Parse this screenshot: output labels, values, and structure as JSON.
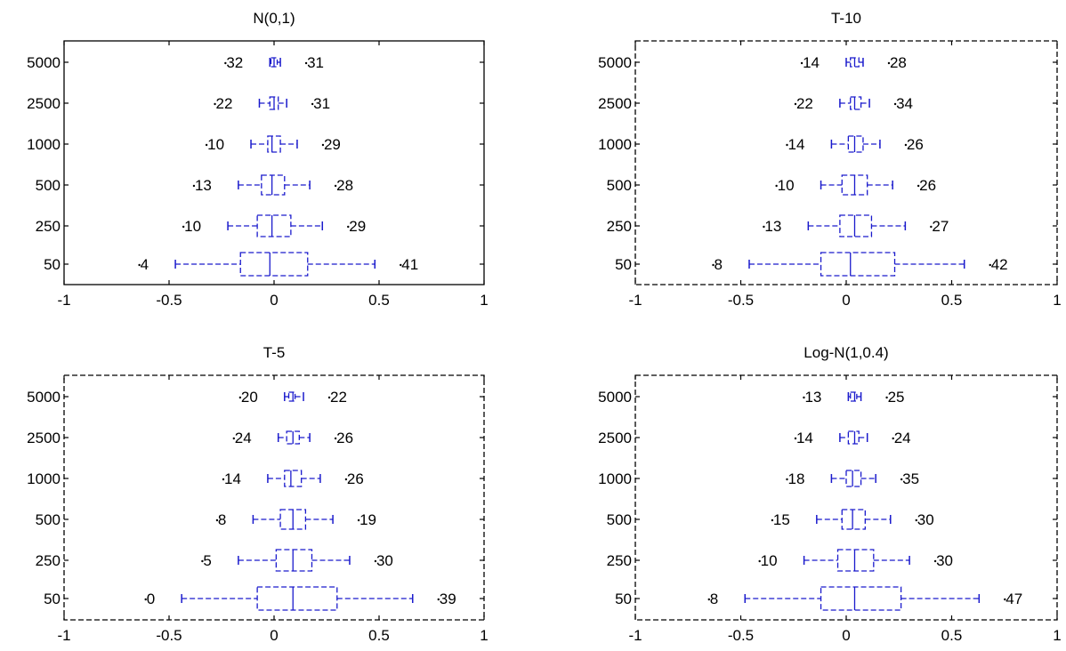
{
  "chart_data": [
    {
      "type": "box",
      "orientation": "horizontal",
      "title": "N(0,1)",
      "frame": "solid",
      "categories": [
        "5000",
        "2500",
        "1000",
        "500",
        "250",
        "50"
      ],
      "xlim": [
        -1,
        1
      ],
      "xticks": [
        -1,
        -0.5,
        0,
        0.5,
        1
      ],
      "xtick_labels": [
        "-1",
        "-0.5",
        "0",
        "0.5",
        "1"
      ],
      "color": "#1a1acc",
      "boxes": [
        {
          "category": "5000",
          "whisker_low": -0.02,
          "q1": -0.015,
          "median": 0.0,
          "q3": 0.015,
          "whisker_high": 0.03,
          "low_outliers": 32,
          "high_outliers": 31
        },
        {
          "category": "2500",
          "whisker_low": -0.07,
          "q1": -0.02,
          "median": 0.0,
          "q3": 0.02,
          "whisker_high": 0.06,
          "low_outliers": 22,
          "high_outliers": 31
        },
        {
          "category": "1000",
          "whisker_low": -0.11,
          "q1": -0.03,
          "median": -0.01,
          "q3": 0.03,
          "whisker_high": 0.11,
          "low_outliers": 10,
          "high_outliers": 29
        },
        {
          "category": "500",
          "whisker_low": -0.17,
          "q1": -0.06,
          "median": -0.01,
          "q3": 0.05,
          "whisker_high": 0.17,
          "low_outliers": 13,
          "high_outliers": 28
        },
        {
          "category": "250",
          "whisker_low": -0.22,
          "q1": -0.08,
          "median": -0.01,
          "q3": 0.08,
          "whisker_high": 0.23,
          "low_outliers": 10,
          "high_outliers": 29
        },
        {
          "category": "50",
          "whisker_low": -0.47,
          "q1": -0.16,
          "median": -0.02,
          "q3": 0.16,
          "whisker_high": 0.48,
          "low_outliers": 4,
          "high_outliers": 41
        }
      ]
    },
    {
      "type": "box",
      "orientation": "horizontal",
      "title": "T-10",
      "frame": "dashed",
      "categories": [
        "5000",
        "2500",
        "1000",
        "500",
        "250",
        "50"
      ],
      "xlim": [
        -1,
        1
      ],
      "xticks": [
        -1,
        -0.5,
        0,
        0.5,
        1
      ],
      "xtick_labels": [
        "-1",
        "-0.5",
        "0",
        "0.5",
        "1"
      ],
      "color": "#1a1acc",
      "boxes": [
        {
          "category": "5000",
          "whisker_low": 0.0,
          "q1": 0.02,
          "median": 0.04,
          "q3": 0.06,
          "whisker_high": 0.08,
          "low_outliers": 14,
          "high_outliers": 28
        },
        {
          "category": "2500",
          "whisker_low": -0.03,
          "q1": 0.02,
          "median": 0.04,
          "q3": 0.07,
          "whisker_high": 0.11,
          "low_outliers": 22,
          "high_outliers": 34
        },
        {
          "category": "1000",
          "whisker_low": -0.07,
          "q1": 0.01,
          "median": 0.04,
          "q3": 0.08,
          "whisker_high": 0.16,
          "low_outliers": 14,
          "high_outliers": 26
        },
        {
          "category": "500",
          "whisker_low": -0.12,
          "q1": -0.02,
          "median": 0.04,
          "q3": 0.1,
          "whisker_high": 0.22,
          "low_outliers": 10,
          "high_outliers": 26
        },
        {
          "category": "250",
          "whisker_low": -0.18,
          "q1": -0.03,
          "median": 0.04,
          "q3": 0.12,
          "whisker_high": 0.28,
          "low_outliers": 13,
          "high_outliers": 27
        },
        {
          "category": "50",
          "whisker_low": -0.46,
          "q1": -0.12,
          "median": 0.02,
          "q3": 0.23,
          "whisker_high": 0.56,
          "low_outliers": 8,
          "high_outliers": 42
        }
      ]
    },
    {
      "type": "box",
      "orientation": "horizontal",
      "title": "T-5",
      "frame": "dashed",
      "categories": [
        "5000",
        "2500",
        "1000",
        "500",
        "250",
        "50"
      ],
      "xlim": [
        -1,
        1
      ],
      "xticks": [
        -1,
        -0.5,
        0,
        0.5,
        1
      ],
      "xtick_labels": [
        "-1",
        "-0.5",
        "0",
        "0.5",
        "1"
      ],
      "color": "#1a1acc",
      "boxes": [
        {
          "category": "5000",
          "whisker_low": 0.05,
          "q1": 0.07,
          "median": 0.09,
          "q3": 0.1,
          "whisker_high": 0.14,
          "low_outliers": 20,
          "high_outliers": 22
        },
        {
          "category": "2500",
          "whisker_low": 0.02,
          "q1": 0.06,
          "median": 0.09,
          "q3": 0.12,
          "whisker_high": 0.17,
          "low_outliers": 24,
          "high_outliers": 26
        },
        {
          "category": "1000",
          "whisker_low": -0.03,
          "q1": 0.05,
          "median": 0.08,
          "q3": 0.13,
          "whisker_high": 0.22,
          "low_outliers": 14,
          "high_outliers": 26
        },
        {
          "category": "500",
          "whisker_low": -0.1,
          "q1": 0.03,
          "median": 0.09,
          "q3": 0.15,
          "whisker_high": 0.28,
          "low_outliers": 8,
          "high_outliers": 19
        },
        {
          "category": "250",
          "whisker_low": -0.17,
          "q1": 0.01,
          "median": 0.09,
          "q3": 0.18,
          "whisker_high": 0.36,
          "low_outliers": 5,
          "high_outliers": 30
        },
        {
          "category": "50",
          "whisker_low": -0.44,
          "q1": -0.08,
          "median": 0.09,
          "q3": 0.3,
          "whisker_high": 0.66,
          "low_outliers": 0,
          "high_outliers": 39
        }
      ]
    },
    {
      "type": "box",
      "orientation": "horizontal",
      "title": "Log-N(1,0.4)",
      "frame": "dashed",
      "categories": [
        "5000",
        "2500",
        "1000",
        "500",
        "250",
        "50"
      ],
      "xlim": [
        -1,
        1
      ],
      "xticks": [
        -1,
        -0.5,
        0,
        0.5,
        1
      ],
      "xtick_labels": [
        "-1",
        "-0.5",
        "0",
        "0.5",
        "1"
      ],
      "color": "#1a1acc",
      "boxes": [
        {
          "category": "5000",
          "whisker_low": 0.01,
          "q1": 0.02,
          "median": 0.04,
          "q3": 0.05,
          "whisker_high": 0.07,
          "low_outliers": 13,
          "high_outliers": 25
        },
        {
          "category": "2500",
          "whisker_low": -0.03,
          "q1": 0.01,
          "median": 0.04,
          "q3": 0.06,
          "whisker_high": 0.1,
          "low_outliers": 14,
          "high_outliers": 24
        },
        {
          "category": "1000",
          "whisker_low": -0.07,
          "q1": 0.0,
          "median": 0.03,
          "q3": 0.07,
          "whisker_high": 0.14,
          "low_outliers": 18,
          "high_outliers": 35
        },
        {
          "category": "500",
          "whisker_low": -0.14,
          "q1": -0.02,
          "median": 0.03,
          "q3": 0.09,
          "whisker_high": 0.21,
          "low_outliers": 15,
          "high_outliers": 30
        },
        {
          "category": "250",
          "whisker_low": -0.2,
          "q1": -0.04,
          "median": 0.04,
          "q3": 0.13,
          "whisker_high": 0.3,
          "low_outliers": 10,
          "high_outliers": 30
        },
        {
          "category": "50",
          "whisker_low": -0.48,
          "q1": -0.12,
          "median": 0.04,
          "q3": 0.26,
          "whisker_high": 0.63,
          "low_outliers": 8,
          "high_outliers": 47
        }
      ]
    }
  ]
}
